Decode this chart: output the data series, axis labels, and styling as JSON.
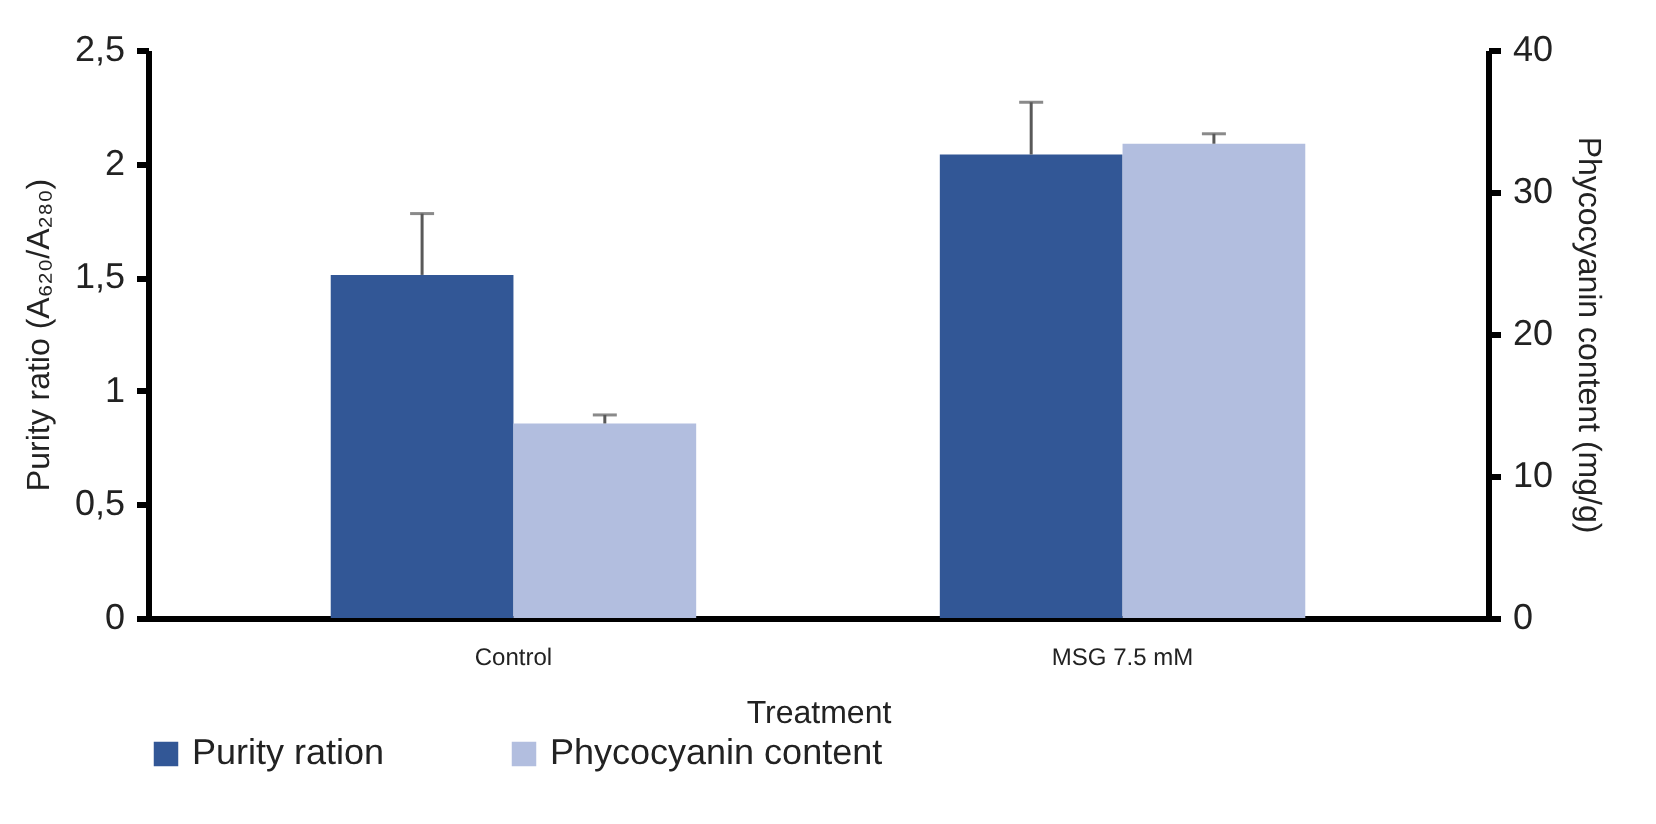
{
  "chart_data": {
    "type": "bar",
    "categories": [
      "Control",
      "MSG 7.5 mM"
    ],
    "xlabel": "Treatment",
    "ylabel": "Purity ratio (A₆₂₀/A₂₈₀)",
    "y2label": "Phycocyanin content (mg/g)",
    "series": [
      {
        "name": "Purity ration",
        "color": "#325796",
        "values": [
          1.51,
          2.04
        ],
        "errors": [
          0.27,
          0.23
        ]
      },
      {
        "name": "Phycocyanin content",
        "color": "#b2bedf",
        "values": [
          13.7,
          33.4
        ],
        "errors": [
          0.6,
          0.7
        ],
        "axis": "y2"
      }
    ],
    "ylim": [
      0,
      2.5
    ],
    "yticks": [
      0,
      {
        "value": 0.5,
        "label": "0,5"
      },
      1,
      {
        "value": 1.5,
        "label": "1,5"
      },
      2,
      {
        "value": 2.5,
        "label": "2,5"
      }
    ],
    "y2lim": [
      0,
      40
    ],
    "y2ticks": [
      0,
      10,
      20,
      30,
      40
    ],
    "grid": false,
    "legend": "bottom"
  }
}
